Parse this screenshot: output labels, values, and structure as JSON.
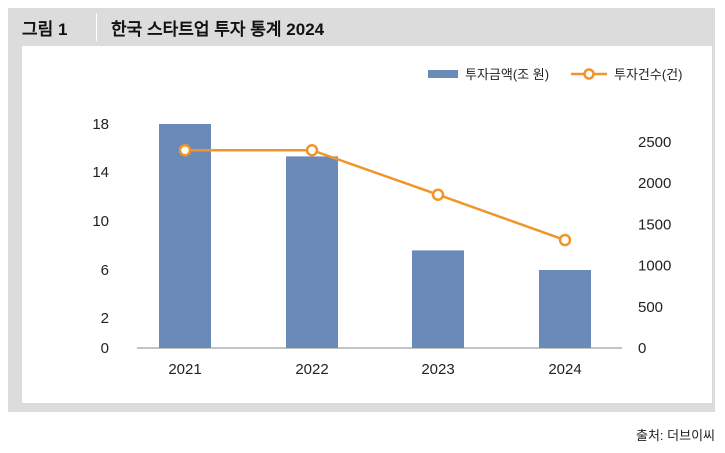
{
  "header": {
    "figure_label": "그림 1",
    "title": "한국 스타트업 투자 통계 2024"
  },
  "source_note": "출처: 더브이씨",
  "colors": {
    "frame_bg": "#dcdcdc",
    "bar": "#6a8ab8",
    "line": "#f0952a",
    "marker_fill": "#ffffff",
    "axis": "#888888"
  },
  "chart_data": {
    "type": "bar",
    "title": "한국 스타트업 투자 통계 2024",
    "categories": [
      "2021",
      "2022",
      "2023",
      "2024"
    ],
    "series": [
      {
        "name": "투자금액(조 원)",
        "type": "bar",
        "axis": "left",
        "values": [
          18,
          15.3,
          7.6,
          6.0
        ]
      },
      {
        "name": "투자건수(건)",
        "type": "line",
        "axis": "right",
        "values": [
          2400,
          2400,
          1860,
          1310
        ]
      }
    ],
    "left_axis": {
      "ticks": [
        "0",
        "2",
        "6",
        "10",
        "14",
        "18"
      ]
    },
    "right_axis": {
      "ticks": [
        "0",
        "500",
        "1000",
        "1500",
        "2000",
        "2500"
      ]
    },
    "legend": {
      "placement": "top-right",
      "entries": [
        "투자금액(조 원)",
        "투자건수(건)"
      ]
    },
    "grid": false
  }
}
